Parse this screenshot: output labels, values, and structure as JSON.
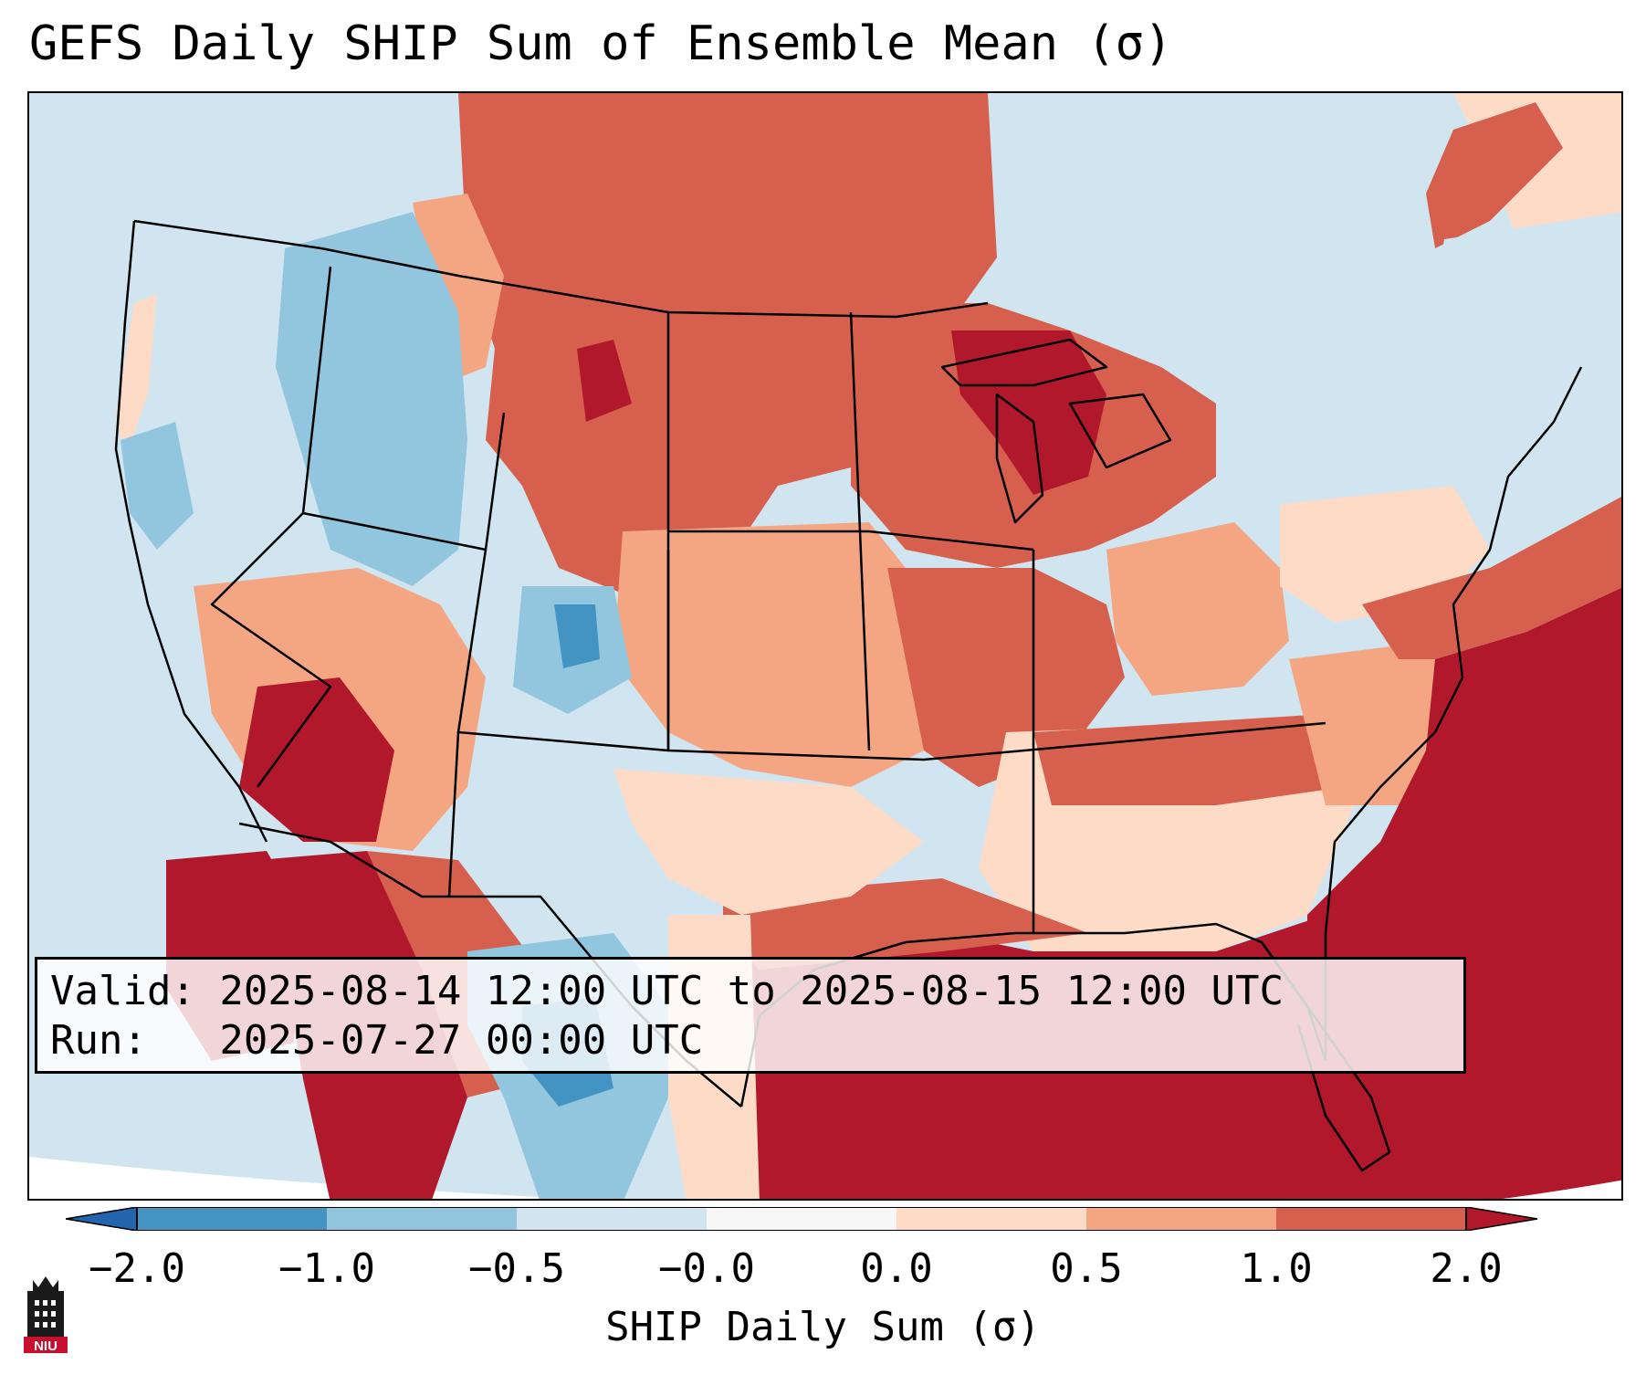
{
  "header": {
    "title": "GEFS Daily SHIP Sum of Ensemble Mean (σ)"
  },
  "info": {
    "valid_line": "Valid: 2025-08-14 12:00 UTC to 2025-08-15 12:00 UTC",
    "run_line": "Run:   2025-07-27 00:00 UTC"
  },
  "colorbar": {
    "label": "SHIP Daily Sum (σ)",
    "ticks": [
      "−2.0",
      "−1.0",
      "−0.5",
      "−0.0",
      "0.0",
      "0.5",
      "1.0",
      "2.0"
    ],
    "bins": [
      {
        "range": "−2.0 to −1.0",
        "color": "#4393c3"
      },
      {
        "range": "−1.0 to −0.5",
        "color": "#92c5de"
      },
      {
        "range": "−0.5 to −0.0",
        "color": "#d1e5f0"
      },
      {
        "range": "−0.0 to 0.0",
        "color": "#f7f7f7"
      },
      {
        "range": "0.0 to 0.5",
        "color": "#fddbc7"
      },
      {
        "range": "0.5 to 1.0",
        "color": "#f4a582"
      },
      {
        "range": "1.0 to 2.0",
        "color": "#d6604d"
      }
    ],
    "under_color": "#2166ac",
    "over_color": "#b2182b"
  },
  "logo": {
    "text": "NIU",
    "icon": "university-tower-icon",
    "color": "#c8102e"
  },
  "map": {
    "projection": "Lambert Conformal (CONUS)",
    "background": "#ffffff"
  }
}
